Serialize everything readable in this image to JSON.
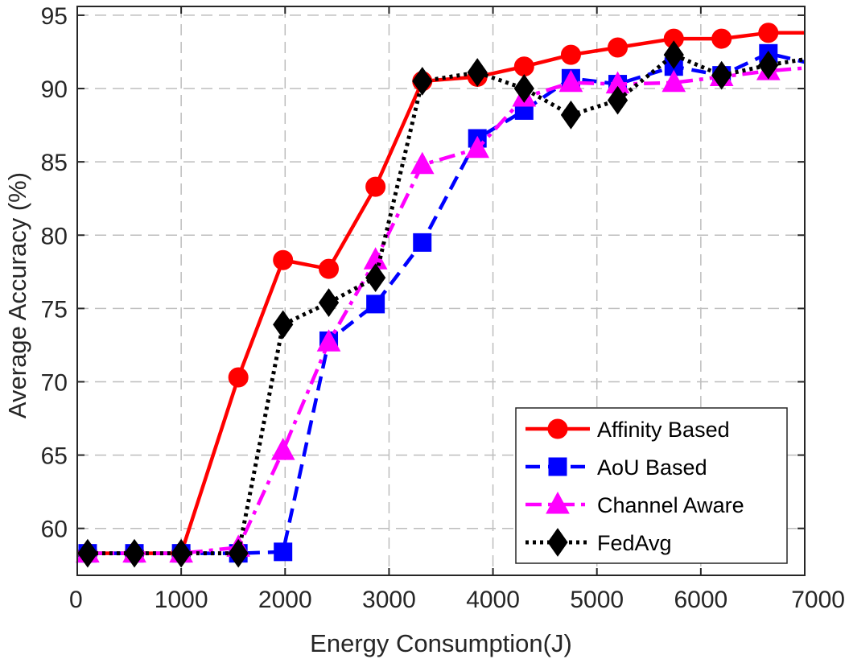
{
  "chart_data": {
    "type": "line",
    "title": "",
    "xlabel": "Energy Consumption(J)",
    "ylabel": "Average Accuracy (%)",
    "xlim": [
      0,
      7000
    ],
    "ylim": [
      56.8,
      95.6
    ],
    "xticks": [
      0,
      1000,
      2000,
      3000,
      4000,
      5000,
      6000,
      7000
    ],
    "yticks": [
      60,
      65,
      70,
      75,
      80,
      85,
      90,
      95
    ],
    "grid": true,
    "legend_position": "bottom-right",
    "series": [
      {
        "name": "Affinity Based",
        "color": "#ff0000",
        "line_style": "solid",
        "marker": "circle",
        "x": [
          100,
          550,
          1000,
          1550,
          1980,
          2420,
          2870,
          3320,
          3850,
          4300,
          4750,
          5200,
          5740,
          6200,
          6650,
          7000
        ],
        "y": [
          58.3,
          58.3,
          58.3,
          70.3,
          78.3,
          77.7,
          83.3,
          90.5,
          90.8,
          91.5,
          92.3,
          92.8,
          93.4,
          93.4,
          93.8,
          93.8
        ]
      },
      {
        "name": "AoU Based",
        "color": "#0000ff",
        "line_style": "dashed",
        "marker": "square",
        "x": [
          100,
          550,
          1000,
          1550,
          1980,
          2420,
          2870,
          3320,
          3850,
          4300,
          4750,
          5200,
          5740,
          6200,
          6650,
          7000
        ],
        "y": [
          58.3,
          58.3,
          58.3,
          58.3,
          58.4,
          72.8,
          75.3,
          79.5,
          86.6,
          88.5,
          90.7,
          90.3,
          91.5,
          90.9,
          92.4,
          91.8
        ]
      },
      {
        "name": "Channel Aware",
        "color": "#ff00ff",
        "line_style": "dashdot",
        "marker": "triangle",
        "x": [
          100,
          550,
          1000,
          1550,
          1980,
          2420,
          2870,
          3320,
          3850,
          4300,
          4750,
          5200,
          5740,
          6200,
          6650,
          7000
        ],
        "y": [
          58.3,
          58.3,
          58.3,
          58.7,
          65.3,
          72.7,
          78.3,
          84.8,
          85.9,
          89.4,
          90.4,
          90.3,
          90.4,
          90.8,
          91.2,
          91.4
        ]
      },
      {
        "name": "FedAvg",
        "color": "#000000",
        "line_style": "dotted",
        "marker": "diamond",
        "x": [
          100,
          550,
          1000,
          1550,
          1980,
          2420,
          2870,
          3320,
          3850,
          4300,
          4750,
          5200,
          5740,
          6200,
          6650,
          7000
        ],
        "y": [
          58.3,
          58.3,
          58.3,
          58.3,
          73.9,
          75.4,
          77.1,
          90.5,
          91.1,
          90.0,
          88.2,
          89.2,
          92.3,
          90.9,
          91.6,
          92.0
        ]
      }
    ]
  }
}
